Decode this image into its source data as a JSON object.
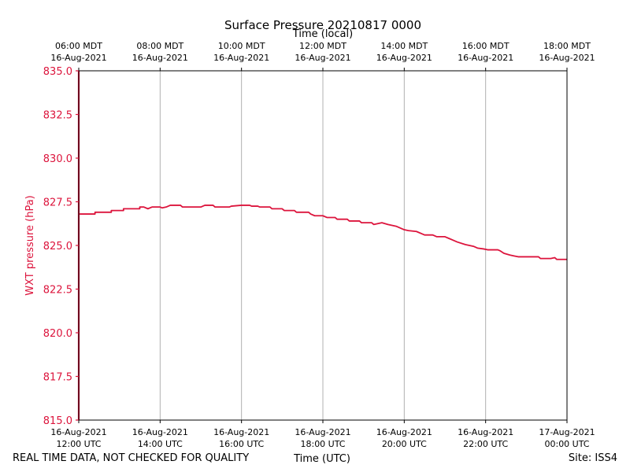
{
  "chart_data": {
    "type": "line",
    "title": "Surface Pressure 20210817 0000",
    "top_axis_label": "Time (local)",
    "xlabel": "Time (UTC)",
    "ylabel": "WXT pressure (hPa)",
    "ylim": [
      815.0,
      835.0
    ],
    "y_ticks": [
      "815.0",
      "817.5",
      "820.0",
      "822.5",
      "825.0",
      "827.5",
      "830.0",
      "832.5",
      "835.0"
    ],
    "x_range_hours_utc": [
      12,
      24
    ],
    "x_ticks_bottom": [
      {
        "hour": 12,
        "line1": "16-Aug-2021",
        "line2": "12:00 UTC"
      },
      {
        "hour": 14,
        "line1": "16-Aug-2021",
        "line2": "14:00 UTC"
      },
      {
        "hour": 16,
        "line1": "16-Aug-2021",
        "line2": "16:00 UTC"
      },
      {
        "hour": 18,
        "line1": "16-Aug-2021",
        "line2": "18:00 UTC"
      },
      {
        "hour": 20,
        "line1": "16-Aug-2021",
        "line2": "20:00 UTC"
      },
      {
        "hour": 22,
        "line1": "16-Aug-2021",
        "line2": "22:00 UTC"
      },
      {
        "hour": 24,
        "line1": "17-Aug-2021",
        "line2": "00:00 UTC"
      }
    ],
    "x_ticks_top": [
      {
        "hour": 12,
        "line1": "06:00 MDT",
        "line2": "16-Aug-2021"
      },
      {
        "hour": 14,
        "line1": "08:00 MDT",
        "line2": "16-Aug-2021"
      },
      {
        "hour": 16,
        "line1": "10:00 MDT",
        "line2": "16-Aug-2021"
      },
      {
        "hour": 18,
        "line1": "12:00 MDT",
        "line2": "16-Aug-2021"
      },
      {
        "hour": 20,
        "line1": "14:00 MDT",
        "line2": "16-Aug-2021"
      },
      {
        "hour": 22,
        "line1": "16:00 MDT",
        "line2": "16-Aug-2021"
      },
      {
        "hour": 24,
        "line1": "18:00 MDT",
        "line2": "16-Aug-2021"
      }
    ],
    "grid": "vertical",
    "series": [
      {
        "color": "#dc143c",
        "points": [
          [
            12.0,
            835.0
          ],
          [
            12.0,
            826.8
          ],
          [
            12.4,
            826.8
          ],
          [
            12.4,
            826.9
          ],
          [
            12.8,
            826.9
          ],
          [
            12.8,
            827.0
          ],
          [
            13.1,
            827.0
          ],
          [
            13.1,
            827.1
          ],
          [
            13.5,
            827.1
          ],
          [
            13.5,
            827.2
          ],
          [
            13.6,
            827.2
          ],
          [
            13.7,
            827.1
          ],
          [
            13.8,
            827.2
          ],
          [
            14.0,
            827.2
          ],
          [
            14.05,
            827.15
          ],
          [
            14.15,
            827.2
          ],
          [
            14.25,
            827.3
          ],
          [
            14.5,
            827.3
          ],
          [
            14.55,
            827.2
          ],
          [
            15.0,
            827.2
          ],
          [
            15.1,
            827.3
          ],
          [
            15.3,
            827.3
          ],
          [
            15.35,
            827.2
          ],
          [
            15.7,
            827.2
          ],
          [
            15.75,
            827.25
          ],
          [
            16.0,
            827.3
          ],
          [
            16.2,
            827.3
          ],
          [
            16.25,
            827.25
          ],
          [
            16.4,
            827.25
          ],
          [
            16.45,
            827.2
          ],
          [
            16.7,
            827.2
          ],
          [
            16.75,
            827.1
          ],
          [
            17.0,
            827.1
          ],
          [
            17.05,
            827.0
          ],
          [
            17.3,
            827.0
          ],
          [
            17.35,
            826.9
          ],
          [
            17.65,
            826.9
          ],
          [
            17.7,
            826.8
          ],
          [
            17.8,
            826.7
          ],
          [
            18.0,
            826.7
          ],
          [
            18.1,
            826.6
          ],
          [
            18.3,
            826.6
          ],
          [
            18.35,
            826.5
          ],
          [
            18.6,
            826.5
          ],
          [
            18.65,
            826.4
          ],
          [
            18.9,
            826.4
          ],
          [
            18.95,
            826.3
          ],
          [
            19.2,
            826.3
          ],
          [
            19.25,
            826.2
          ],
          [
            19.45,
            826.3
          ],
          [
            19.6,
            826.2
          ],
          [
            19.8,
            826.1
          ],
          [
            19.9,
            826.0
          ],
          [
            20.0,
            825.9
          ],
          [
            20.1,
            825.85
          ],
          [
            20.3,
            825.8
          ],
          [
            20.45,
            825.65
          ],
          [
            20.5,
            825.6
          ],
          [
            20.7,
            825.6
          ],
          [
            20.8,
            825.5
          ],
          [
            21.0,
            825.5
          ],
          [
            21.1,
            825.4
          ],
          [
            21.2,
            825.3
          ],
          [
            21.3,
            825.2
          ],
          [
            21.5,
            825.05
          ],
          [
            21.6,
            825.0
          ],
          [
            21.7,
            824.95
          ],
          [
            21.8,
            824.85
          ],
          [
            21.95,
            824.8
          ],
          [
            22.05,
            824.75
          ],
          [
            22.3,
            824.75
          ],
          [
            22.35,
            824.7
          ],
          [
            22.45,
            824.55
          ],
          [
            22.6,
            824.45
          ],
          [
            22.7,
            824.4
          ],
          [
            22.8,
            824.35
          ],
          [
            22.9,
            824.35
          ],
          [
            23.3,
            824.35
          ],
          [
            23.35,
            824.25
          ],
          [
            23.6,
            824.25
          ],
          [
            23.7,
            824.3
          ],
          [
            23.75,
            824.2
          ],
          [
            24.0,
            824.2
          ]
        ]
      }
    ]
  },
  "footer": {
    "left": "REAL TIME DATA, NOT CHECKED FOR QUALITY",
    "right": "Site: ISS4"
  }
}
